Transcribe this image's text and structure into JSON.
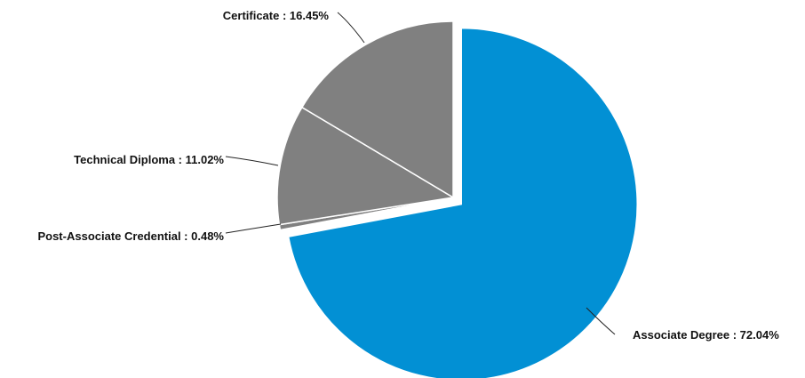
{
  "chart_data": {
    "type": "pie",
    "title": "",
    "slices": [
      {
        "label": "Associate Degree",
        "value": 72.04,
        "text": "Associate Degree : 72.04%",
        "color": "#0290d4",
        "exploded": true
      },
      {
        "label": "Post-Associate Credential",
        "value": 0.48,
        "text": "Post-Associate Credential : 0.48%",
        "color": "#808080",
        "exploded": false
      },
      {
        "label": "Technical Diploma",
        "value": 11.02,
        "text": "Technical Diploma : 11.02%",
        "color": "#808080",
        "exploded": false
      },
      {
        "label": "Certificate",
        "value": 16.45,
        "text": "Certificate : 16.45%",
        "color": "#808080",
        "exploded": false
      }
    ],
    "start_angle": "12 o'clock",
    "direction": "clockwise",
    "slice_border_color": "#ffffff"
  }
}
